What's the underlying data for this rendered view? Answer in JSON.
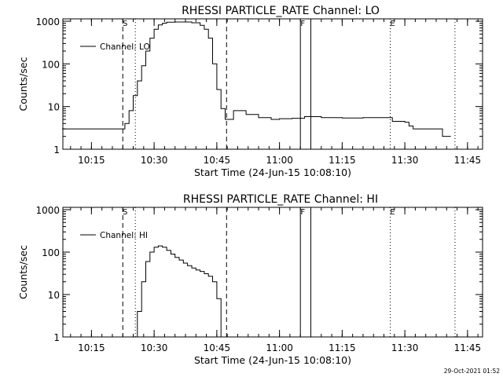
{
  "chart_data": [
    {
      "type": "line",
      "title": "RHESSI PARTICLE_RATE Channel: LO",
      "xlabel": "Start Time (24-Jun-15 10:08:10)",
      "ylabel": "Counts/sec",
      "yscale": "log",
      "ylim": [
        1,
        1000
      ],
      "ytick_labels": [
        "1",
        "10",
        "100",
        "1000"
      ],
      "xlim_minutes": [
        10.136,
        11.81
      ],
      "x_tick_labels": [
        "10:15",
        "10:30",
        "10:45",
        "11:00",
        "11:15",
        "11:30",
        "11:45"
      ],
      "legend": {
        "label": "Channel: LO",
        "placement": "upper-left"
      },
      "markers": [
        {
          "label": "S",
          "time": "10:22:30",
          "style": "dashed"
        },
        {
          "label": "",
          "time": "10:25:30",
          "style": "dotted"
        },
        {
          "label": "",
          "time": "10:47:20",
          "style": "dashed"
        },
        {
          "label": "F",
          "time": "11:05:00",
          "style": "solid"
        },
        {
          "label": "",
          "time": "11:07:30",
          "style": "solid"
        },
        {
          "label": "E",
          "time": "11:26:30",
          "style": "dotted"
        },
        {
          "label": "",
          "time": "11:42:00",
          "style": "dotted"
        }
      ],
      "series": [
        {
          "name": "Channel: LO",
          "points": [
            [
              "10:08",
              3
            ],
            [
              "10:22",
              3
            ],
            [
              "10:23",
              4
            ],
            [
              "10:24",
              8
            ],
            [
              "10:25",
              18
            ],
            [
              "10:26",
              40
            ],
            [
              "10:27",
              90
            ],
            [
              "10:28",
              200
            ],
            [
              "10:29",
              400
            ],
            [
              "10:30",
              650
            ],
            [
              "10:31",
              820
            ],
            [
              "10:32",
              900
            ],
            [
              "10:33",
              950
            ],
            [
              "10:35",
              960
            ],
            [
              "10:37",
              960
            ],
            [
              "10:39",
              920
            ],
            [
              "10:41",
              800
            ],
            [
              "10:42",
              650
            ],
            [
              "10:43",
              400
            ],
            [
              "10:44",
              100
            ],
            [
              "10:45",
              25
            ],
            [
              "10:46",
              9
            ],
            [
              "10:47",
              5
            ],
            [
              "10:48",
              5
            ],
            [
              "10:49",
              8
            ],
            [
              "10:52",
              6.5
            ],
            [
              "10:55",
              5.5
            ],
            [
              "10:58",
              5
            ],
            [
              "11:00",
              5.2
            ],
            [
              "11:03",
              5.3
            ],
            [
              "11:06",
              5.8
            ],
            [
              "11:10",
              5.5
            ],
            [
              "11:15",
              5.4
            ],
            [
              "11:20",
              5.5
            ],
            [
              "11:26",
              5.5
            ],
            [
              "11:27",
              4.5
            ],
            [
              "11:30",
              4.3
            ],
            [
              "11:31",
              3.5
            ],
            [
              "11:32",
              3
            ],
            [
              "11:35",
              3
            ],
            [
              "11:38",
              3
            ],
            [
              "11:39",
              2
            ],
            [
              "11:41",
              2
            ]
          ]
        }
      ]
    },
    {
      "type": "line",
      "title": "RHESSI PARTICLE_RATE Channel: HI",
      "xlabel": "Start Time (24-Jun-15 10:08:10)",
      "ylabel": "Counts/sec",
      "yscale": "log",
      "ylim": [
        1,
        1000
      ],
      "ytick_labels": [
        "1",
        "10",
        "100",
        "1000"
      ],
      "xlim_minutes": [
        10.136,
        11.81
      ],
      "x_tick_labels": [
        "10:15",
        "10:30",
        "10:45",
        "11:00",
        "11:15",
        "11:30",
        "11:45"
      ],
      "legend": {
        "label": "Channel: HI",
        "placement": "upper-left"
      },
      "markers": [
        {
          "label": "S",
          "time": "10:22:30",
          "style": "dashed"
        },
        {
          "label": "",
          "time": "10:25:30",
          "style": "dotted"
        },
        {
          "label": "",
          "time": "10:47:20",
          "style": "dashed"
        },
        {
          "label": "F",
          "time": "11:05:00",
          "style": "solid"
        },
        {
          "label": "",
          "time": "11:07:30",
          "style": "solid"
        },
        {
          "label": "E",
          "time": "11:26:30",
          "style": "dotted"
        },
        {
          "label": "",
          "time": "11:42:00",
          "style": "dotted"
        }
      ],
      "series": [
        {
          "name": "Channel: HI",
          "points": [
            [
              "10:25",
              1
            ],
            [
              "10:26",
              4
            ],
            [
              "10:27",
              20
            ],
            [
              "10:28",
              60
            ],
            [
              "10:29",
              100
            ],
            [
              "10:30",
              130
            ],
            [
              "10:31",
              140
            ],
            [
              "10:32",
              130
            ],
            [
              "10:33",
              110
            ],
            [
              "10:34",
              90
            ],
            [
              "10:35",
              75
            ],
            [
              "10:36",
              65
            ],
            [
              "10:37",
              55
            ],
            [
              "10:38",
              48
            ],
            [
              "10:39",
              42
            ],
            [
              "10:40",
              38
            ],
            [
              "10:41",
              35
            ],
            [
              "10:42",
              31
            ],
            [
              "10:43",
              27
            ],
            [
              "10:44",
              20
            ],
            [
              "10:45",
              8
            ],
            [
              "10:46",
              1
            ]
          ]
        }
      ]
    }
  ],
  "footer": {
    "timestamp": "29-Oct-2021 01:52"
  }
}
